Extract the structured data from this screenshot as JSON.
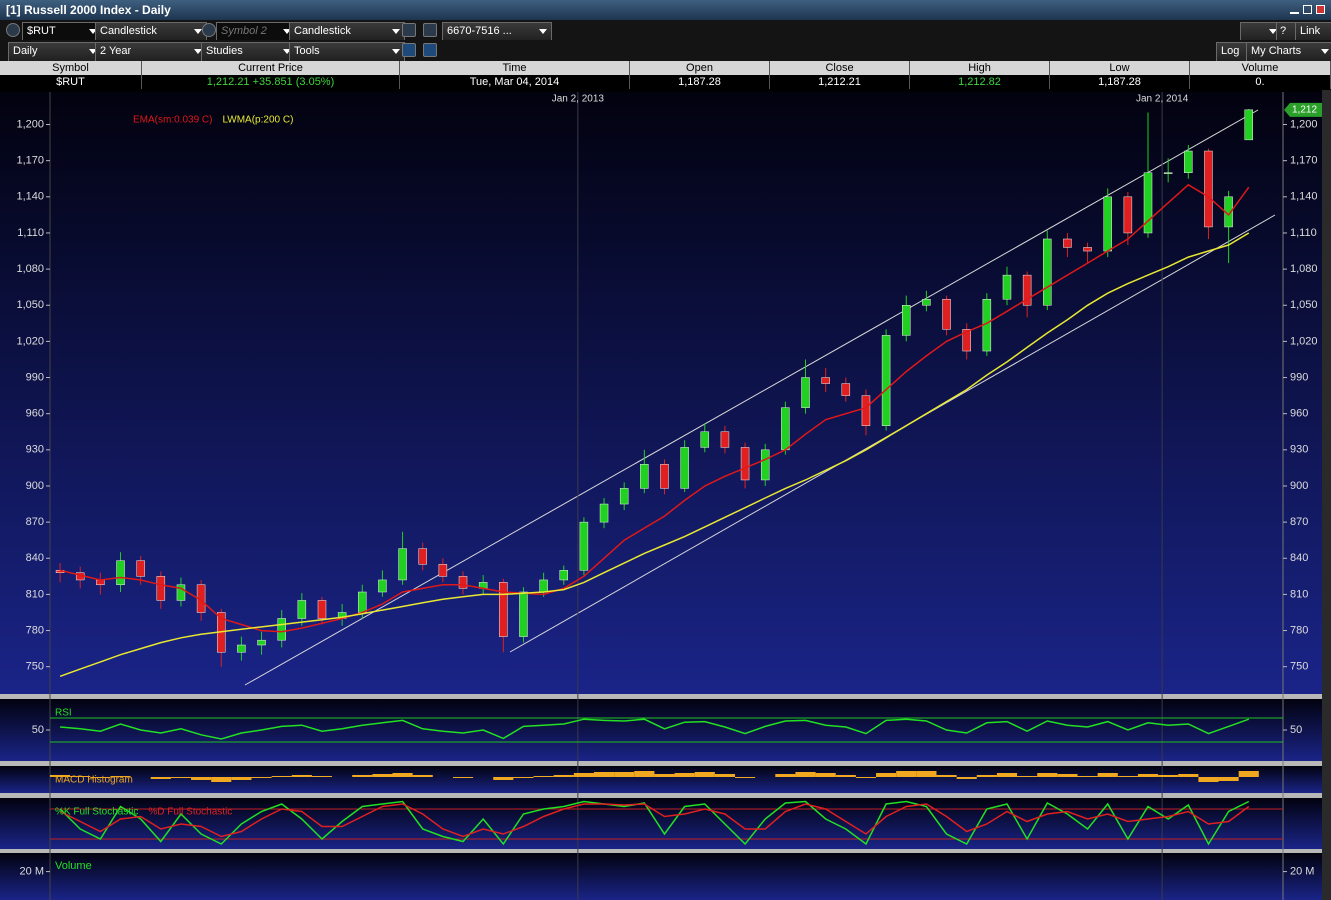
{
  "window": {
    "title": "[1] Russell 2000 Index - Daily"
  },
  "toolbar": {
    "symbol": "$RUT",
    "chart_type": "Candlestick",
    "symbol2_placeholder": "Symbol 2",
    "chart_type2": "Candlestick",
    "range_field": "6670-7516 ...",
    "period": "Daily",
    "span": "2 Year",
    "studies": "Studies",
    "tools": "Tools",
    "log": "Log",
    "my_charts": "My Charts",
    "link": "Link",
    "help": "?"
  },
  "quote_table": {
    "headers": [
      "Symbol",
      "Current Price",
      "Time",
      "Open",
      "Close",
      "High",
      "Low",
      "Volume"
    ],
    "row": [
      "$RUT",
      "1,212.21 +35.851 (3.05%)",
      "Tue, Mar 04, 2014",
      "1,187.28",
      "1,212.21",
      "1,212.82",
      "1,187.28",
      "0."
    ]
  },
  "chart_data": [
    {
      "type": "candlestick",
      "categories": [
        null,
        null,
        null,
        null,
        null,
        null,
        null,
        null,
        null,
        null,
        null,
        null,
        null,
        null,
        null,
        null,
        null,
        null,
        null,
        null,
        null,
        null,
        null,
        null,
        null,
        null,
        null,
        null,
        null,
        null,
        null,
        null,
        null,
        null,
        null,
        null,
        null,
        null,
        null,
        null,
        null,
        null,
        null,
        null,
        null,
        null,
        null,
        null,
        null,
        null,
        null,
        null,
        null,
        null,
        null,
        null,
        null,
        null,
        null,
        null
      ],
      "xlim": [
        -0.5,
        60.7
      ],
      "xticks": [
        {
          "value": 25.7,
          "label": "Jan 2, 2013"
        },
        {
          "value": 54.7,
          "label": "Jan 2, 2014"
        }
      ],
      "ylim": [
        729,
        1227
      ],
      "yticks": [
        750,
        780,
        810,
        840,
        870,
        900,
        930,
        960,
        990,
        {
          "value": 1020,
          "label": "1,020"
        },
        {
          "value": 1050,
          "label": "1,050"
        },
        {
          "value": 1080,
          "label": "1,080"
        },
        {
          "value": 1110,
          "label": "1,110"
        },
        {
          "value": 1140,
          "label": "1,140"
        },
        {
          "value": 1170,
          "label": "1,170"
        },
        {
          "value": 1200,
          "label": "1,200"
        }
      ],
      "up_color": "#22d022",
      "down_color": "#e02020",
      "open": [
        830,
        828,
        822,
        818,
        838,
        825,
        805,
        818,
        795,
        762,
        768,
        772,
        790,
        805,
        790,
        795,
        812,
        822,
        848,
        835,
        825,
        815,
        820,
        775,
        812,
        822,
        830,
        870,
        885,
        898,
        918,
        898,
        932,
        945,
        932,
        905,
        930,
        965,
        990,
        985,
        975,
        950,
        1025,
        1050,
        1055,
        1030,
        1012,
        1055,
        1075,
        1050,
        1105,
        1098,
        1095,
        1140,
        1110,
        1160,
        1160,
        1178,
        1115,
        1187.28
      ],
      "high": [
        836,
        833,
        828,
        845,
        842,
        829,
        824,
        822,
        798,
        775,
        779,
        797,
        811,
        808,
        802,
        818,
        830,
        862,
        853,
        840,
        829,
        826,
        823,
        816,
        828,
        834,
        874,
        890,
        903,
        930,
        922,
        938,
        952,
        950,
        936,
        935,
        970,
        1005,
        998,
        990,
        980,
        1030,
        1058,
        1062,
        1058,
        1035,
        1060,
        1082,
        1078,
        1112,
        1110,
        1102,
        1147,
        1144,
        1210,
        1172,
        1183,
        1180,
        1145,
        1212.82
      ],
      "low": [
        820,
        815,
        810,
        812,
        818,
        798,
        800,
        788,
        750,
        755,
        760,
        766,
        784,
        785,
        784,
        790,
        808,
        818,
        830,
        820,
        810,
        810,
        762,
        770,
        808,
        818,
        826,
        865,
        880,
        894,
        893,
        895,
        928,
        927,
        898,
        900,
        926,
        960,
        978,
        970,
        942,
        946,
        1020,
        1045,
        1025,
        1005,
        1008,
        1050,
        1040,
        1046,
        1090,
        1085,
        1090,
        1100,
        1106,
        1152,
        1155,
        1105,
        1085,
        1187.28
      ],
      "close": [
        828,
        822,
        818,
        838,
        825,
        805,
        818,
        795,
        762,
        768,
        772,
        790,
        805,
        790,
        795,
        812,
        822,
        848,
        835,
        825,
        815,
        820,
        775,
        812,
        822,
        830,
        870,
        885,
        898,
        918,
        898,
        932,
        945,
        932,
        905,
        930,
        965,
        990,
        985,
        975,
        950,
        1025,
        1050,
        1055,
        1030,
        1012,
        1055,
        1075,
        1050,
        1105,
        1098,
        1095,
        1140,
        1110,
        1160,
        1160,
        1178,
        1115,
        1140,
        1212.21
      ],
      "last_price_tag": "1,212",
      "tag_color": "#2aa02a",
      "grid": "x",
      "series": [
        {
          "name": "EMA(sm:0.039 C)",
          "color": "#e01818",
          "values": [
            830,
            826,
            822,
            824,
            822,
            818,
            815,
            805,
            790,
            785,
            780,
            779,
            782,
            786,
            790,
            795,
            802,
            812,
            815,
            818,
            818,
            815,
            812,
            811,
            810,
            815,
            825,
            840,
            855,
            865,
            875,
            888,
            900,
            908,
            915,
            922,
            930,
            943,
            955,
            960,
            965,
            980,
            995,
            1008,
            1020,
            1028,
            1035,
            1045,
            1055,
            1065,
            1075,
            1085,
            1095,
            1105,
            1120,
            1135,
            1150,
            1140,
            1125,
            1148
          ]
        },
        {
          "name": "LWMA(p:200 C)",
          "color": "#e8e830",
          "values": [
            742,
            748,
            754,
            760,
            765,
            770,
            774,
            777,
            779,
            781,
            783,
            785,
            787,
            789,
            791,
            794,
            797,
            800,
            803,
            806,
            808,
            810,
            810,
            811,
            812,
            814,
            820,
            828,
            836,
            844,
            851,
            858,
            866,
            874,
            882,
            890,
            898,
            905,
            913,
            921,
            930,
            940,
            950,
            960,
            970,
            980,
            992,
            1003,
            1015,
            1027,
            1038,
            1050,
            1060,
            1068,
            1075,
            1082,
            1090,
            1095,
            1100,
            1110
          ]
        }
      ]
    },
    {
      "type": "line",
      "ylim": [
        0,
        100
      ],
      "yticks": [
        50
      ],
      "levels": [
        30,
        70
      ],
      "level_color": "#20c020",
      "series": [
        {
          "name": "RSI",
          "color": "#22e022",
          "values": [
            55,
            52,
            48,
            60,
            50,
            45,
            52,
            42,
            35,
            45,
            50,
            56,
            58,
            48,
            52,
            58,
            62,
            66,
            52,
            48,
            45,
            50,
            36,
            56,
            58,
            60,
            68,
            66,
            65,
            68,
            52,
            63,
            64,
            55,
            44,
            56,
            65,
            66,
            58,
            55,
            44,
            66,
            68,
            65,
            50,
            45,
            62,
            64,
            48,
            65,
            58,
            55,
            64,
            50,
            62,
            58,
            60,
            44,
            56,
            68
          ]
        }
      ]
    },
    {
      "type": "bar",
      "ylim": [
        -16,
        11
      ],
      "series": [
        {
          "name": "MACD Histogram",
          "color": "#f0a820",
          "values": [
            2,
            1,
            -1,
            1,
            0,
            -2,
            -1,
            -3,
            -5,
            -3,
            -1,
            1,
            2,
            1,
            0,
            2,
            3,
            4,
            2,
            0,
            -1,
            0,
            -3,
            -1,
            1,
            2,
            4,
            5,
            5,
            6,
            3,
            4,
            5,
            3,
            -1,
            0,
            3,
            5,
            4,
            2,
            -1,
            4,
            6,
            6,
            2,
            -2,
            2,
            4,
            1,
            4,
            3,
            1,
            4,
            1,
            3,
            2,
            3,
            -5,
            -4,
            6
          ]
        }
      ]
    },
    {
      "type": "line",
      "ylim": [
        0,
        100
      ],
      "levels": [
        20,
        80
      ],
      "level_color": "#c02020",
      "series": [
        {
          "name": "%K Full Stochastic",
          "color": "#22e022",
          "values": [
            80,
            40,
            20,
            85,
            60,
            15,
            70,
            30,
            10,
            50,
            75,
            90,
            60,
            20,
            55,
            85,
            90,
            95,
            40,
            25,
            15,
            60,
            10,
            70,
            80,
            85,
            95,
            90,
            85,
            92,
            30,
            85,
            90,
            50,
            10,
            60,
            92,
            95,
            60,
            40,
            10,
            90,
            95,
            85,
            30,
            10,
            80,
            90,
            20,
            92,
            70,
            40,
            90,
            20,
            85,
            60,
            88,
            10,
            75,
            95
          ]
        },
        {
          "name": "%D Full Stochastic",
          "color": "#e02020",
          "values": [
            75,
            55,
            35,
            60,
            65,
            40,
            50,
            45,
            25,
            35,
            60,
            80,
            75,
            45,
            45,
            65,
            85,
            90,
            70,
            40,
            25,
            40,
            30,
            45,
            65,
            80,
            90,
            90,
            88,
            90,
            65,
            70,
            80,
            70,
            40,
            40,
            75,
            90,
            80,
            55,
            30,
            65,
            85,
            90,
            65,
            35,
            50,
            75,
            55,
            70,
            75,
            60,
            70,
            55,
            60,
            65,
            75,
            50,
            55,
            85
          ]
        }
      ]
    },
    {
      "type": "bar",
      "title": "Volume",
      "title_color": "#22e022",
      "ylim": [
        0,
        33100000
      ],
      "yticks": [
        {
          "value": 20000000,
          "label": "20 M"
        }
      ]
    }
  ]
}
